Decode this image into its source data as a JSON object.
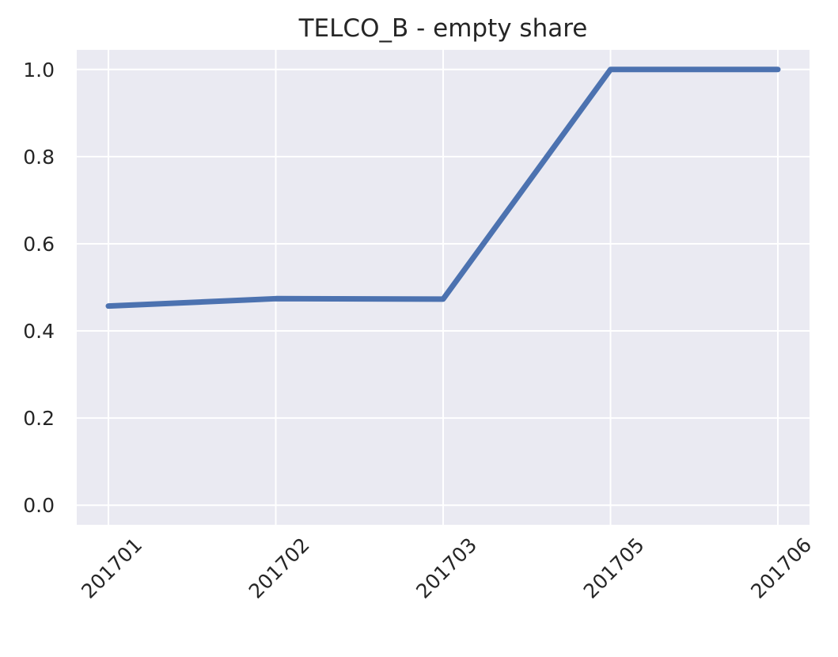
{
  "chart_data": {
    "type": "line",
    "title": "TELCO_B - empty share",
    "xlabel": "",
    "ylabel": "",
    "categories": [
      "201701",
      "201702",
      "201703",
      "201705",
      "201706"
    ],
    "series": [
      {
        "values": [
          0.457,
          0.474,
          0.473,
          1.0,
          1.0
        ],
        "color": "#4c72b0"
      }
    ],
    "ylim": [
      -0.045,
      1.045
    ],
    "yticks": [
      0.0,
      0.2,
      0.4,
      0.6,
      0.8,
      1.0
    ],
    "ytick_labels": [
      "0.0",
      "0.2",
      "0.4",
      "0.6",
      "0.8",
      "1.0"
    ],
    "xtick_rotation": 45,
    "grid": true,
    "legend": "none",
    "colors": {
      "plot_background": "#eaeaf2",
      "grid": "#ffffff",
      "text": "#262626"
    }
  }
}
